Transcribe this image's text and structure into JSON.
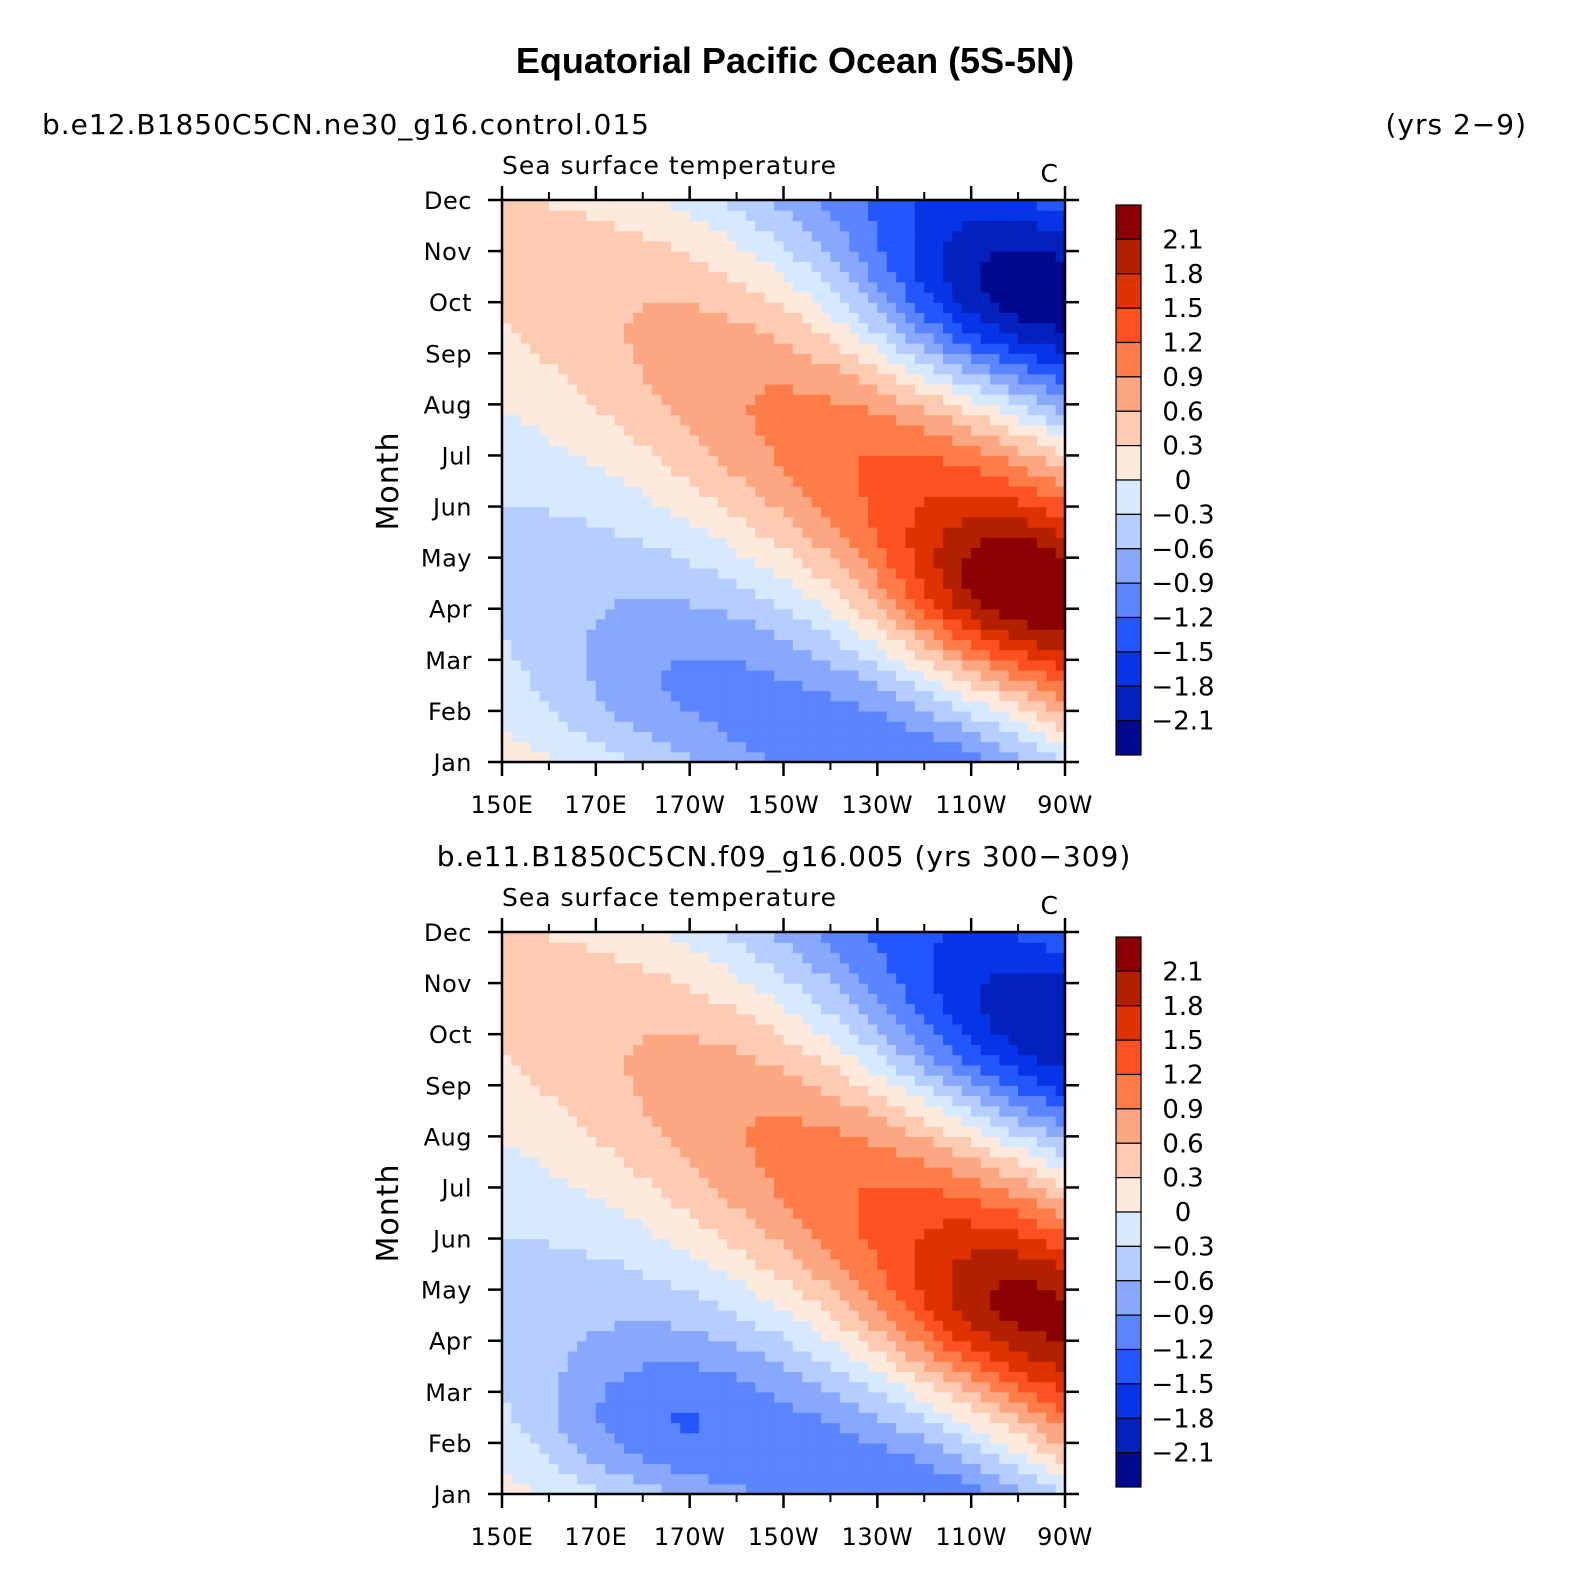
{
  "figure_title": "Equatorial Pacific Ocean (5S-5N)",
  "chart_data": [
    {
      "type": "heatmap",
      "case_label": "b.e12.B1850C5CN.ne30_g16.control.015",
      "years_label": "(yrs 2−9)",
      "title": "Sea surface temperature",
      "units": "C",
      "ylabel": "Month",
      "xlabel": "",
      "x_ticks": [
        "150E",
        "170E",
        "170W",
        "150W",
        "130W",
        "110W",
        "90W"
      ],
      "y_ticks": [
        "Jan",
        "Feb",
        "Mar",
        "Apr",
        "May",
        "Jun",
        "Jul",
        "Aug",
        "Sep",
        "Oct",
        "Nov",
        "Dec"
      ],
      "xlim_degE": [
        150,
        270
      ],
      "ylim_month": [
        1,
        12
      ],
      "peak_warm": {
        "lon_degE": 255,
        "month": 4.3,
        "value": 2.5
      },
      "peak_cold": {
        "lon_degE": 255,
        "month": 9.9,
        "value": -2.3
      }
    },
    {
      "type": "heatmap",
      "case_label": "b.e11.B1850C5CN.f09_g16.005 (yrs 300−309)",
      "years_label": "",
      "title": "Sea surface temperature",
      "units": "C",
      "ylabel": "Month",
      "xlabel": "",
      "x_ticks": [
        "150E",
        "170E",
        "170W",
        "150W",
        "130W",
        "110W",
        "90W"
      ],
      "y_ticks": [
        "Jan",
        "Feb",
        "Mar",
        "Apr",
        "May",
        "Jun",
        "Jul",
        "Aug",
        "Sep",
        "Oct",
        "Nov",
        "Dec"
      ],
      "xlim_degE": [
        150,
        270
      ],
      "ylim_month": [
        1,
        12
      ],
      "peak_warm": {
        "lon_degE": 255,
        "month": 4.6,
        "value": 2.2
      },
      "peak_cold": {
        "lon_degE": 255,
        "month": 9.8,
        "value": -1.9
      }
    }
  ],
  "colorbar": {
    "labels": [
      "2.1",
      "1.8",
      "1.5",
      "1.2",
      "0.9",
      "0.6",
      "0.3",
      "0",
      "−0.3",
      "−0.6",
      "−0.9",
      "−1.2",
      "−1.5",
      "−1.8",
      "−2.1"
    ],
    "levels": [
      2.1,
      1.8,
      1.5,
      1.2,
      0.9,
      0.6,
      0.3,
      0,
      -0.3,
      -0.6,
      -0.9,
      -1.2,
      -1.5,
      -1.8,
      -2.1
    ],
    "colors": [
      "#8b0000",
      "#b22000",
      "#df3200",
      "#fe5121",
      "#fd7c47",
      "#fda782",
      "#fdcbb2",
      "#feeadd",
      "#d7e9ff",
      "#b5ceff",
      "#87a8fd",
      "#5a85fe",
      "#2357fd",
      "#0535e6",
      "#0221bd",
      "#03098f"
    ]
  }
}
